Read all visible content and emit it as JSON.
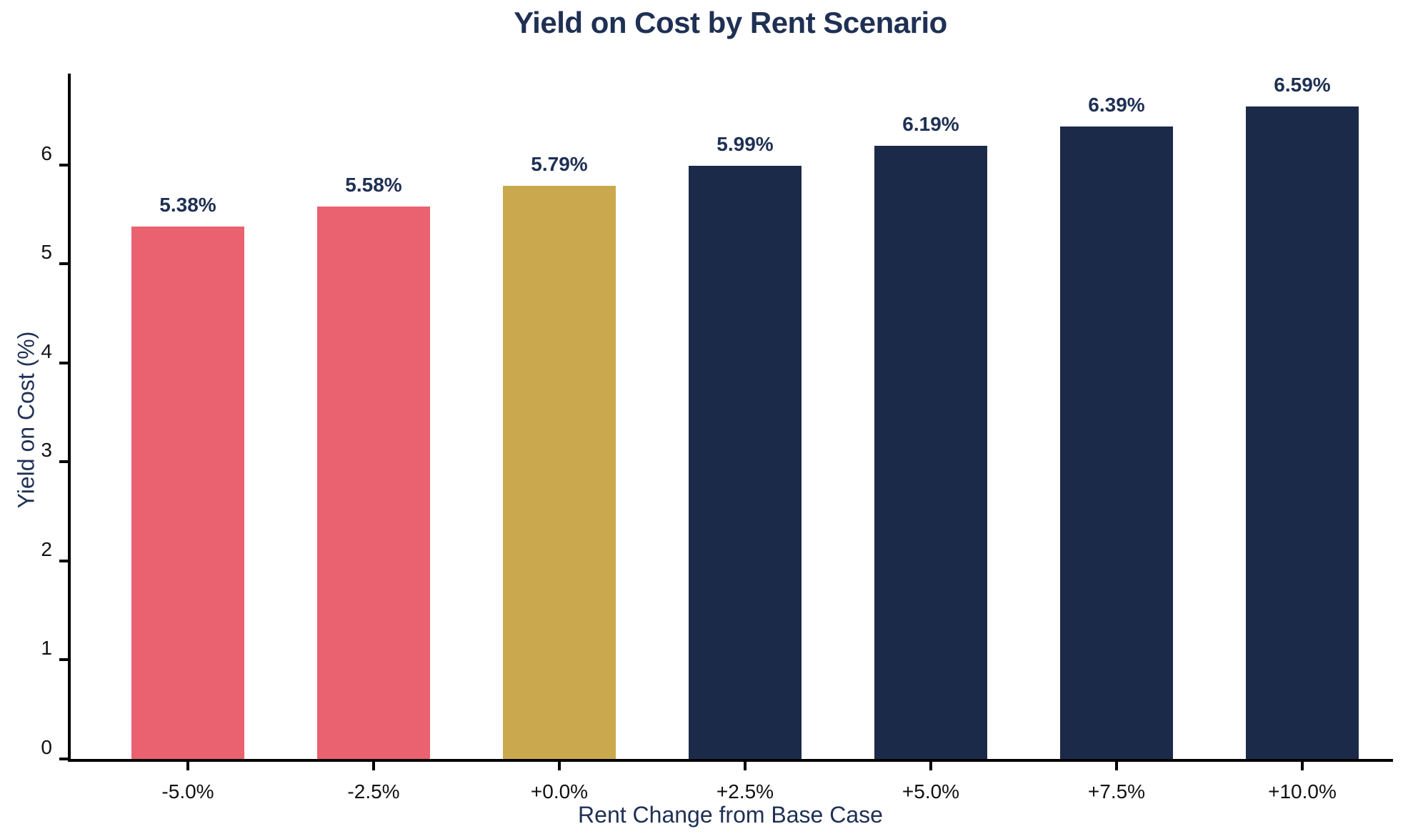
{
  "chart_data": {
    "type": "bar",
    "title": "Yield on Cost by Rent Scenario",
    "xlabel": "Rent Change from Base Case",
    "ylabel": "Yield on Cost (%)",
    "categories": [
      "-5.0%",
      "-2.5%",
      "+0.0%",
      "+2.5%",
      "+5.0%",
      "+7.5%",
      "+10.0%"
    ],
    "values": [
      5.38,
      5.58,
      5.79,
      5.99,
      6.19,
      6.39,
      6.59
    ],
    "bar_labels": [
      "5.38%",
      "5.58%",
      "5.79%",
      "5.99%",
      "6.19%",
      "6.39%",
      "6.59%"
    ],
    "bar_colors": [
      "#EA6170",
      "#EA6170",
      "#CAA84D",
      "#1C2A4A",
      "#1C2A4A",
      "#1C2A4A",
      "#1C2A4A"
    ],
    "yticks": [
      0,
      1,
      2,
      3,
      4,
      5,
      6
    ],
    "ylim": [
      0,
      6.95
    ],
    "grid": false,
    "legend": "none",
    "colors": {
      "title": "#1F3054",
      "axis_label": "#1F3054",
      "value_label": "#1F3054",
      "tick_label": "#111111",
      "spine": "#000000",
      "negative_bar": "#EA6170",
      "base_bar": "#CAA84D",
      "positive_bar": "#1C2A4A",
      "background": "#FFFFFF"
    }
  }
}
